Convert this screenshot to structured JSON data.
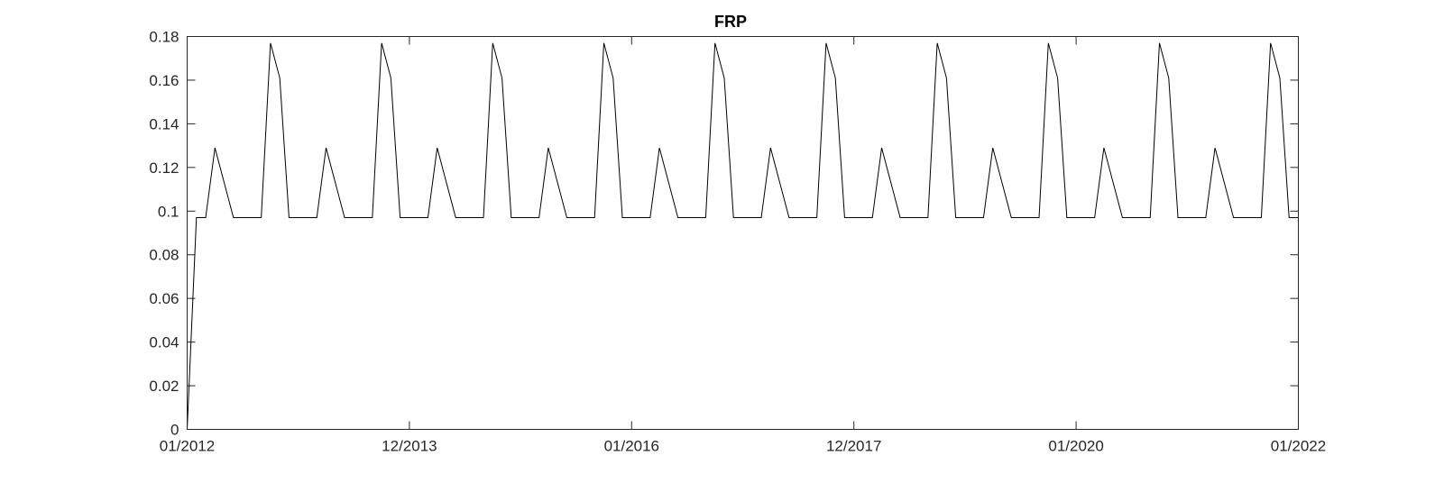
{
  "chart_data": {
    "type": "line",
    "title": "FRP",
    "xlabel": "",
    "ylabel": "",
    "ylim": [
      0,
      0.18
    ],
    "xlim": [
      0,
      120
    ],
    "grid": false,
    "y_ticks": [
      0,
      0.02,
      0.04,
      0.06,
      0.08,
      0.1,
      0.12,
      0.14,
      0.16,
      0.18
    ],
    "y_tick_labels": [
      "0",
      "0.02",
      "0.04",
      "0.06",
      "0.08",
      "0.1",
      "0.12",
      "0.14",
      "0.16",
      "0.18"
    ],
    "x_ticks": [
      0,
      24,
      48,
      72,
      96,
      120
    ],
    "x_tick_labels": [
      "01/2012",
      "12/2013",
      "01/2016",
      "12/2017",
      "01/2020",
      "01/2022"
    ],
    "series": [
      {
        "color": "#000000",
        "x": [
          0,
          1,
          2,
          3,
          4,
          5,
          6,
          7,
          8,
          9,
          10,
          11,
          12,
          13,
          14,
          15,
          16,
          17,
          18,
          19,
          20,
          21,
          22,
          23,
          24,
          25,
          26,
          27,
          28,
          29,
          30,
          31,
          32,
          33,
          34,
          35,
          36,
          37,
          38,
          39,
          40,
          41,
          42,
          43,
          44,
          45,
          46,
          47,
          48,
          49,
          50,
          51,
          52,
          53,
          54,
          55,
          56,
          57,
          58,
          59,
          60,
          61,
          62,
          63,
          64,
          65,
          66,
          67,
          68,
          69,
          70,
          71,
          72,
          73,
          74,
          75,
          76,
          77,
          78,
          79,
          80,
          81,
          82,
          83,
          84,
          85,
          86,
          87,
          88,
          89,
          90,
          91,
          92,
          93,
          94,
          95,
          96,
          97,
          98,
          99,
          100,
          101,
          102,
          103,
          104,
          105,
          106,
          107,
          108,
          109,
          110,
          111,
          112,
          113,
          114,
          115,
          116,
          117,
          118,
          119,
          120
        ],
        "values": [
          0,
          0.097,
          0.097,
          0.129,
          0.113,
          0.097,
          0.097,
          0.097,
          0.097,
          0.177,
          0.161,
          0.097,
          0.097,
          0.097,
          0.097,
          0.129,
          0.113,
          0.097,
          0.097,
          0.097,
          0.097,
          0.177,
          0.161,
          0.097,
          0.097,
          0.097,
          0.097,
          0.129,
          0.113,
          0.097,
          0.097,
          0.097,
          0.097,
          0.177,
          0.161,
          0.097,
          0.097,
          0.097,
          0.097,
          0.129,
          0.113,
          0.097,
          0.097,
          0.097,
          0.097,
          0.177,
          0.161,
          0.097,
          0.097,
          0.097,
          0.097,
          0.129,
          0.113,
          0.097,
          0.097,
          0.097,
          0.097,
          0.177,
          0.161,
          0.097,
          0.097,
          0.097,
          0.097,
          0.129,
          0.113,
          0.097,
          0.097,
          0.097,
          0.097,
          0.177,
          0.161,
          0.097,
          0.097,
          0.097,
          0.097,
          0.129,
          0.113,
          0.097,
          0.097,
          0.097,
          0.097,
          0.177,
          0.161,
          0.097,
          0.097,
          0.097,
          0.097,
          0.129,
          0.113,
          0.097,
          0.097,
          0.097,
          0.097,
          0.177,
          0.161,
          0.097,
          0.097,
          0.097,
          0.097,
          0.129,
          0.113,
          0.097,
          0.097,
          0.097,
          0.097,
          0.177,
          0.161,
          0.097,
          0.097,
          0.097,
          0.097,
          0.129,
          0.113,
          0.097,
          0.097,
          0.097,
          0.097,
          0.177,
          0.161,
          0.097,
          0.097
        ]
      }
    ]
  }
}
